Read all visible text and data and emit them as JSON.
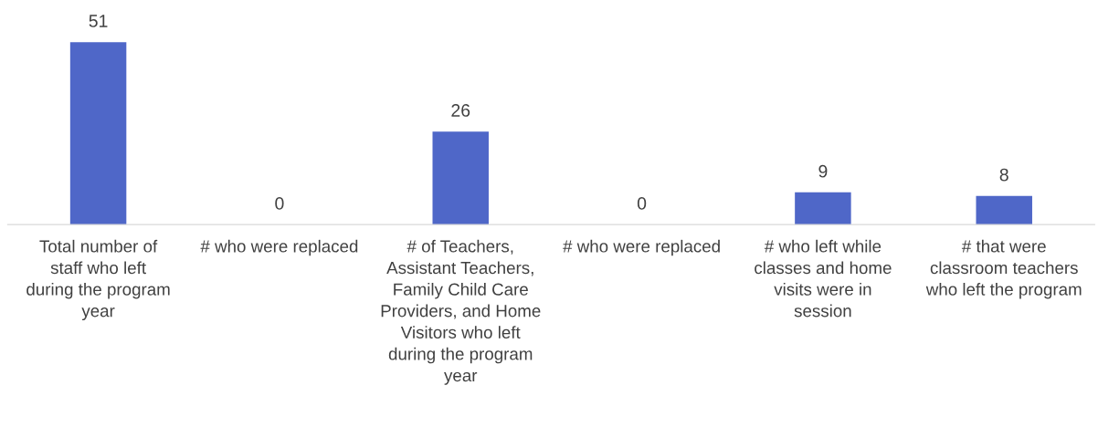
{
  "chart_data": {
    "type": "bar",
    "categories": [
      "Total number of staff who left during the program year",
      "# who were replaced",
      "# of Teachers, Assistant Teachers, Family Child Care Providers, and Home Visitors who left during the program year",
      "# who were replaced",
      "# who left while classes and home visits were in session",
      "# that were classroom teachers who left the program"
    ],
    "values": [
      51,
      0,
      26,
      0,
      9,
      8
    ],
    "color": "#4f67c8",
    "data_labels": true,
    "relative": false,
    "grid": false,
    "legend": false
  }
}
